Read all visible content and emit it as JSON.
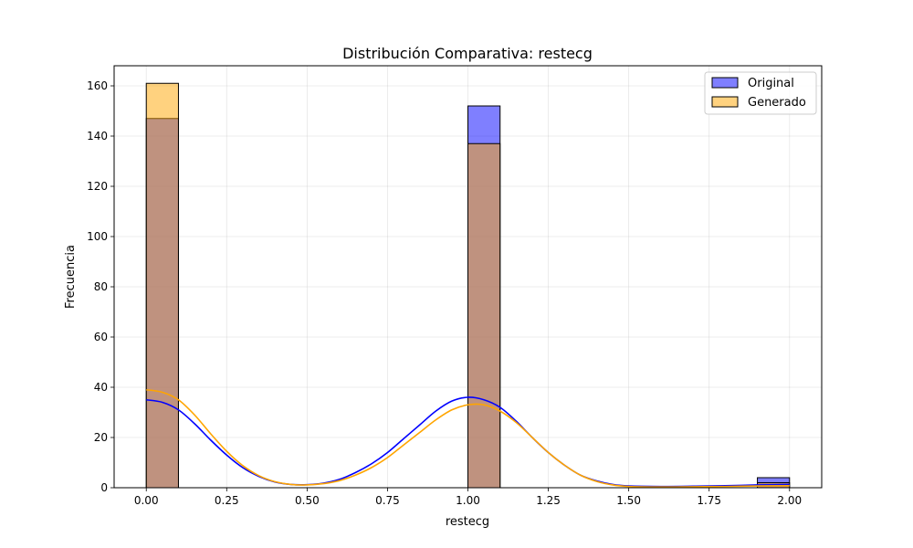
{
  "chart_data": {
    "type": "bar",
    "title": "Distribución Comparativa: restecg",
    "xlabel": "restecg",
    "ylabel": "Frecuencia",
    "xlim": [
      -0.1,
      2.1
    ],
    "ylim": [
      0,
      168
    ],
    "xticks": [
      "0.00",
      "0.25",
      "0.50",
      "0.75",
      "1.00",
      "1.25",
      "1.50",
      "1.75",
      "2.00"
    ],
    "yticks": [
      "0",
      "20",
      "40",
      "60",
      "80",
      "100",
      "120",
      "140",
      "160"
    ],
    "grid": true,
    "legend_position": "top-right",
    "bin_width": 0.1,
    "series": [
      {
        "name": "Original",
        "color": "#0000ff",
        "kde_color": "#0000ff",
        "bars": [
          {
            "x0": 0.0,
            "x1": 0.1,
            "count": 147
          },
          {
            "x0": 1.0,
            "x1": 1.1,
            "count": 152
          },
          {
            "x0": 1.9,
            "x1": 2.0,
            "count": 4
          }
        ],
        "kde": [
          [
            0.0,
            35
          ],
          [
            0.05,
            34
          ],
          [
            0.1,
            31
          ],
          [
            0.15,
            25.5
          ],
          [
            0.2,
            19
          ],
          [
            0.25,
            13
          ],
          [
            0.3,
            8
          ],
          [
            0.35,
            4.5
          ],
          [
            0.4,
            2.3
          ],
          [
            0.45,
            1.3
          ],
          [
            0.5,
            1.2
          ],
          [
            0.55,
            1.8
          ],
          [
            0.6,
            3.3
          ],
          [
            0.65,
            6
          ],
          [
            0.7,
            9.5
          ],
          [
            0.75,
            14
          ],
          [
            0.8,
            19.5
          ],
          [
            0.85,
            25
          ],
          [
            0.9,
            30.5
          ],
          [
            0.95,
            34.5
          ],
          [
            1.0,
            36
          ],
          [
            1.05,
            35
          ],
          [
            1.1,
            32
          ],
          [
            1.15,
            26.5
          ],
          [
            1.2,
            20
          ],
          [
            1.25,
            14
          ],
          [
            1.3,
            9
          ],
          [
            1.35,
            5
          ],
          [
            1.4,
            2.7
          ],
          [
            1.45,
            1.3
          ],
          [
            1.5,
            0.7
          ],
          [
            1.6,
            0.5
          ],
          [
            1.7,
            0.6
          ],
          [
            1.8,
            0.8
          ],
          [
            1.9,
            1.1
          ],
          [
            2.0,
            1.3
          ]
        ]
      },
      {
        "name": "Generado",
        "color": "#ffa500",
        "kde_color": "#ffa500",
        "bars": [
          {
            "x0": 0.0,
            "x1": 0.1,
            "count": 161
          },
          {
            "x0": 1.0,
            "x1": 1.1,
            "count": 137
          },
          {
            "x0": 1.9,
            "x1": 2.0,
            "count": 2
          }
        ],
        "kde": [
          [
            0.0,
            39
          ],
          [
            0.05,
            38
          ],
          [
            0.1,
            35
          ],
          [
            0.15,
            29
          ],
          [
            0.2,
            21.5
          ],
          [
            0.25,
            14.5
          ],
          [
            0.3,
            8.8
          ],
          [
            0.35,
            4.8
          ],
          [
            0.4,
            2.4
          ],
          [
            0.45,
            1.3
          ],
          [
            0.5,
            1.1
          ],
          [
            0.55,
            1.6
          ],
          [
            0.6,
            2.8
          ],
          [
            0.65,
            5
          ],
          [
            0.7,
            8
          ],
          [
            0.75,
            12
          ],
          [
            0.8,
            17
          ],
          [
            0.85,
            22
          ],
          [
            0.9,
            27
          ],
          [
            0.95,
            31
          ],
          [
            1.0,
            33
          ],
          [
            1.05,
            33
          ],
          [
            1.1,
            30.5
          ],
          [
            1.15,
            26
          ],
          [
            1.2,
            20
          ],
          [
            1.25,
            14
          ],
          [
            1.3,
            9
          ],
          [
            1.35,
            5
          ],
          [
            1.4,
            2.5
          ],
          [
            1.45,
            1.1
          ],
          [
            1.5,
            0.5
          ],
          [
            1.6,
            0.3
          ],
          [
            1.7,
            0.4
          ],
          [
            1.8,
            0.5
          ],
          [
            1.9,
            0.7
          ],
          [
            2.0,
            0.8
          ]
        ]
      }
    ]
  }
}
